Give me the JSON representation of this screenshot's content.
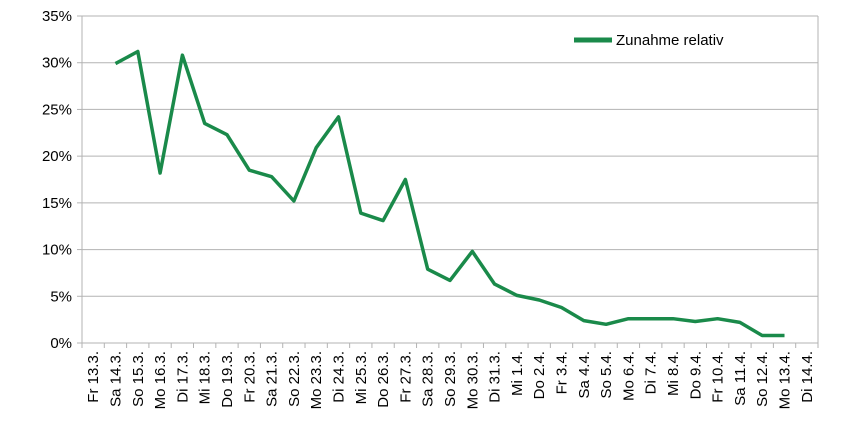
{
  "chart_data": {
    "type": "line",
    "title": "",
    "xlabel": "",
    "ylabel": "",
    "categories": [
      "Fr 13.3.",
      "Sa 14.3.",
      "So 15.3.",
      "Mo 16.3.",
      "Di 17.3.",
      "Mi 18.3.",
      "Do 19.3.",
      "Fr 20.3.",
      "Sa 21.3.",
      "So 22.3.",
      "Mo 23.3.",
      "Di 24.3.",
      "Mi 25.3.",
      "Do 26.3.",
      "Fr 27.3.",
      "Sa 28.3.",
      "So 29.3.",
      "Mo 30.3.",
      "Di 31.3.",
      "Mi 1.4.",
      "Do 2.4.",
      "Fr 3.4.",
      "Sa 4.4.",
      "So 5.4.",
      "Mo 6.4.",
      "Di 7.4.",
      "Mi 8.4.",
      "Do 9.4.",
      "Fr 10.4.",
      "Sa 11.4.",
      "So 12.4.",
      "Mo 13.4.",
      "Di 14.4."
    ],
    "series": [
      {
        "name": "Zunahme relativ",
        "color": "#1a8a4a",
        "values": [
          null,
          29.9,
          31.2,
          18.2,
          30.8,
          23.5,
          22.3,
          18.5,
          17.8,
          15.2,
          20.9,
          24.2,
          13.9,
          13.1,
          17.5,
          7.9,
          6.7,
          9.8,
          6.3,
          5.1,
          4.6,
          3.8,
          2.4,
          2.0,
          2.6,
          2.6,
          2.6,
          2.3,
          2.6,
          2.2,
          0.8,
          0.8,
          null
        ]
      }
    ],
    "ylim": [
      0,
      35
    ],
    "yticks": [
      "0%",
      "5%",
      "10%",
      "15%",
      "20%",
      "25%",
      "30%",
      "35%"
    ],
    "grid": true,
    "legend": "top-right"
  }
}
